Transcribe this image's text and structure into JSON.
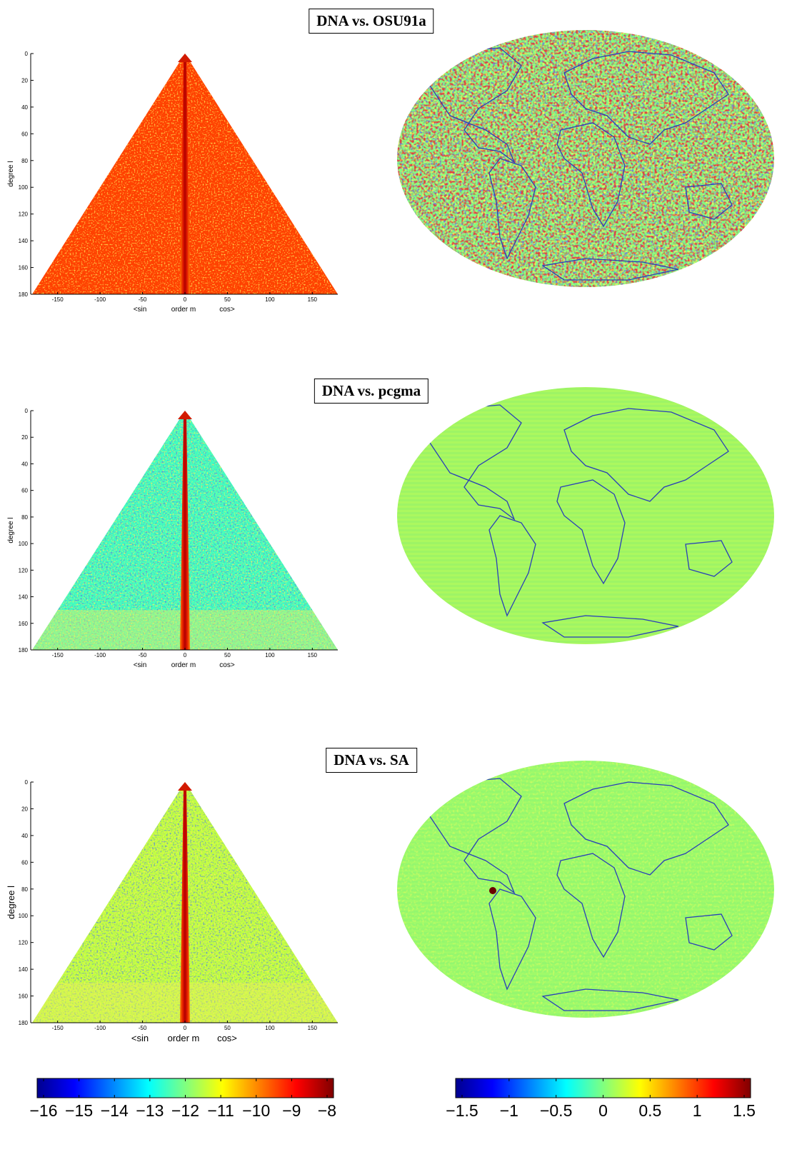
{
  "panels": [
    {
      "title": "DNA vs. OSU91a",
      "triangle": {
        "ylabel": "degree l",
        "xlabel": "order m",
        "xlabel_left": "<sin",
        "xlabel_right": "cos>"
      }
    },
    {
      "title": "DNA vs. pcgma",
      "triangle": {
        "ylabel": "degree l",
        "xlabel": "order m",
        "xlabel_left": "<sin",
        "xlabel_right": "cos>"
      }
    },
    {
      "title": "DNA vs. SA",
      "triangle": {
        "ylabel": "degree l",
        "xlabel": "order m",
        "xlabel_left": "<sin",
        "xlabel_right": "cos>"
      }
    }
  ],
  "colors": {
    "map_base": "#8cf27a",
    "coast": "#2a3fb8",
    "spike": "#d21a00"
  },
  "chart_data": [
    {
      "type": "heatmap",
      "name": "triangle-OSU91a",
      "x_range": [
        -180,
        180
      ],
      "y_range": [
        0,
        180
      ],
      "x_ticks": [
        "-150",
        "-100",
        "-50",
        "0",
        "50",
        "100",
        "150"
      ],
      "y_ticks": [
        "0",
        "20",
        "40",
        "60",
        "80",
        "100",
        "120",
        "140",
        "160",
        "180"
      ],
      "dominant_value": -9.5,
      "center_spike_value": -8
    },
    {
      "type": "heatmap",
      "name": "map-OSU91a",
      "dominant_value": 0,
      "pattern": "high-noise"
    },
    {
      "type": "heatmap",
      "name": "triangle-pcgma",
      "x_range": [
        -180,
        180
      ],
      "y_range": [
        0,
        180
      ],
      "x_ticks": [
        "-150",
        "-100",
        "-50",
        "0",
        "50",
        "100",
        "150"
      ],
      "y_ticks": [
        "0",
        "20",
        "40",
        "60",
        "80",
        "100",
        "120",
        "140",
        "160",
        "180"
      ],
      "dominant_value": -12.5,
      "center_spike_value": -8
    },
    {
      "type": "heatmap",
      "name": "map-pcgma",
      "dominant_value": 0.2,
      "pattern": "smooth"
    },
    {
      "type": "heatmap",
      "name": "triangle-SA",
      "x_range": [
        -180,
        180
      ],
      "y_range": [
        0,
        180
      ],
      "x_ticks": [
        "-150",
        "-100",
        "-50",
        "0",
        "50",
        "100",
        "150"
      ],
      "y_ticks": [
        "0",
        "20",
        "40",
        "60",
        "80",
        "100",
        "120",
        "140",
        "160",
        "180"
      ],
      "dominant_value": -11.5,
      "center_spike_value": -8
    },
    {
      "type": "heatmap",
      "name": "map-SA",
      "dominant_value": 0.1,
      "pattern": "low-noise"
    },
    {
      "type": "colorbar",
      "name": "colorbar-left",
      "range": [
        -16,
        -8
      ],
      "ticks": [
        "−16",
        "−15",
        "−14",
        "−13",
        "−12",
        "−11",
        "−10",
        "−9",
        "−8"
      ]
    },
    {
      "type": "colorbar",
      "name": "colorbar-right",
      "range": [
        -1.5,
        1.5
      ],
      "ticks": [
        "−1.5",
        "−1",
        "−0.5",
        "0",
        "0.5",
        "1",
        "1.5"
      ]
    }
  ]
}
